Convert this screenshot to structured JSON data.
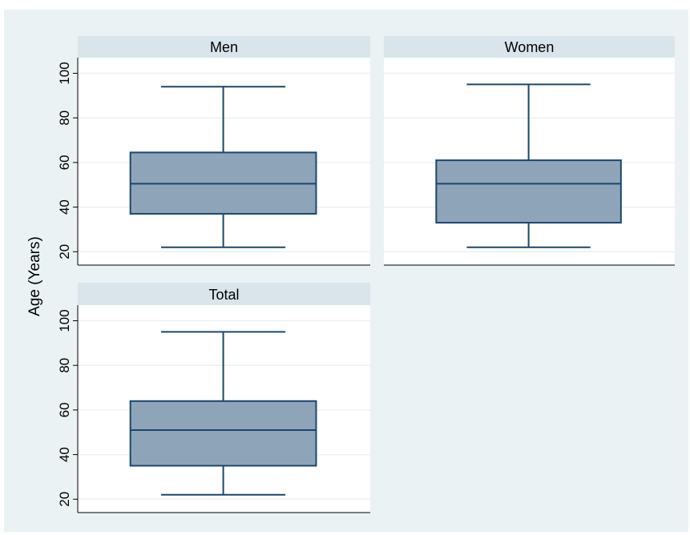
{
  "chart_data": [
    {
      "type": "box",
      "title": "Men",
      "ylabel": "Age (Years)",
      "ylim": [
        14,
        107
      ],
      "yticks": [
        20,
        40,
        60,
        80,
        100
      ],
      "grid": true,
      "box": {
        "min": 22,
        "q1": 37,
        "median": 50.5,
        "q3": 64.5,
        "max": 94
      }
    },
    {
      "type": "box",
      "title": "Women",
      "ylabel": "Age (Years)",
      "ylim": [
        14,
        107
      ],
      "yticks": [
        20,
        40,
        60,
        80,
        100
      ],
      "grid": true,
      "box": {
        "min": 22,
        "q1": 33,
        "median": 50.5,
        "q3": 61,
        "max": 95
      }
    },
    {
      "type": "box",
      "title": "Total",
      "ylabel": "Age (Years)",
      "ylim": [
        14,
        107
      ],
      "yticks": [
        20,
        40,
        60,
        80,
        100
      ],
      "grid": true,
      "box": {
        "min": 22,
        "q1": 35,
        "median": 51,
        "q3": 64,
        "max": 95
      }
    }
  ],
  "ylabel_shared": "Age (Years)",
  "colors": {
    "background": "#eaf2f3",
    "plot_background": "#ffffff",
    "header": "#d9e5eb",
    "box_fill": "#8ea4b9",
    "box_stroke": "#1a476f",
    "grid": "#eaf2f3",
    "axis": "#000000"
  }
}
